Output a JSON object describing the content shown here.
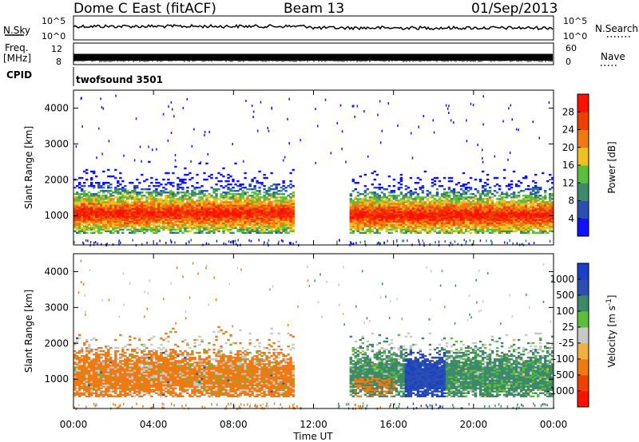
{
  "header": {
    "station": "Dome C East (fitACF)",
    "beam": "Beam 13",
    "date": "01/Sep/2013"
  },
  "top_panels": {
    "nsky_label": "N.Sky",
    "nsky_ticks": [
      "10^5",
      "10^0"
    ],
    "nsearch_label": "N.Search",
    "freq_label_1": "Freq.",
    "freq_label_2": "[MHz]",
    "freq_ticks": [
      "12",
      "8"
    ],
    "nave_ticks": [
      "60",
      "0"
    ],
    "nave_label": "Nave",
    "cpid_label": "CPID",
    "cpid_value": "twofsound 3501"
  },
  "colors": {
    "power_scale": [
      "#1010ff",
      "#2a4fb0",
      "#3c8a6a",
      "#5cbf3c",
      "#f0c020",
      "#f07a10",
      "#f04000",
      "#ff1000"
    ],
    "velocity_scale": [
      "#ff1000",
      "#f04000",
      "#f07a10",
      "#f0b040",
      "#c8c8c8",
      "#5cbf3c",
      "#3c8a6a",
      "#2a4fb0",
      "#1a3fc8"
    ]
  },
  "chart_data": [
    {
      "type": "heatmap",
      "panel": "power",
      "ylabel": "Slant Range [km]",
      "xlabel": "Time UT",
      "y_ticks": [
        "4000",
        "3000",
        "2000",
        "1000"
      ],
      "x_ticks": [
        "00:00",
        "04:00",
        "08:00",
        "12:00",
        "16:00",
        "20:00",
        "00:00"
      ],
      "xlim": [
        "00:00",
        "24:00"
      ],
      "ylim": [
        180,
        4500
      ],
      "colorbar_label": "Power [dB]",
      "colorbar_ticks": [
        "28",
        "24",
        "20",
        "16",
        "12",
        "8",
        "4"
      ],
      "regions": [
        {
          "t0": 0.0,
          "t1": 11.0,
          "r0": 500,
          "r1": 2500,
          "peak_r": 1050
        },
        {
          "t0": 13.8,
          "t1": 24.0,
          "r0": 500,
          "r1": 2300,
          "peak_r": 1000
        }
      ]
    },
    {
      "type": "heatmap",
      "panel": "velocity",
      "ylabel": "Slant Range [km]",
      "xlabel": "Time UT",
      "y_ticks": [
        "4000",
        "3000",
        "2000",
        "1000"
      ],
      "x_ticks": [
        "00:00",
        "04:00",
        "08:00",
        "12:00",
        "16:00",
        "20:00",
        "00:00"
      ],
      "xlim": [
        "00:00",
        "24:00"
      ],
      "ylim": [
        180,
        4500
      ],
      "colorbar_label": "Velocity [m s",
      "colorbar_exponent": "-1",
      "colorbar_tail": "]",
      "colorbar_ticks": [
        "1000",
        "500",
        "100",
        "25",
        "-25",
        "-100",
        "-500",
        "-1000"
      ],
      "regions": [
        {
          "t0": 0.0,
          "t1": 11.0,
          "r0": 500,
          "r1": 2500,
          "velocity": -300
        },
        {
          "t0": 13.8,
          "t1": 24.0,
          "r0": 500,
          "r1": 2300,
          "velocity": 200
        }
      ]
    }
  ],
  "x_axis_title": "Time UT"
}
